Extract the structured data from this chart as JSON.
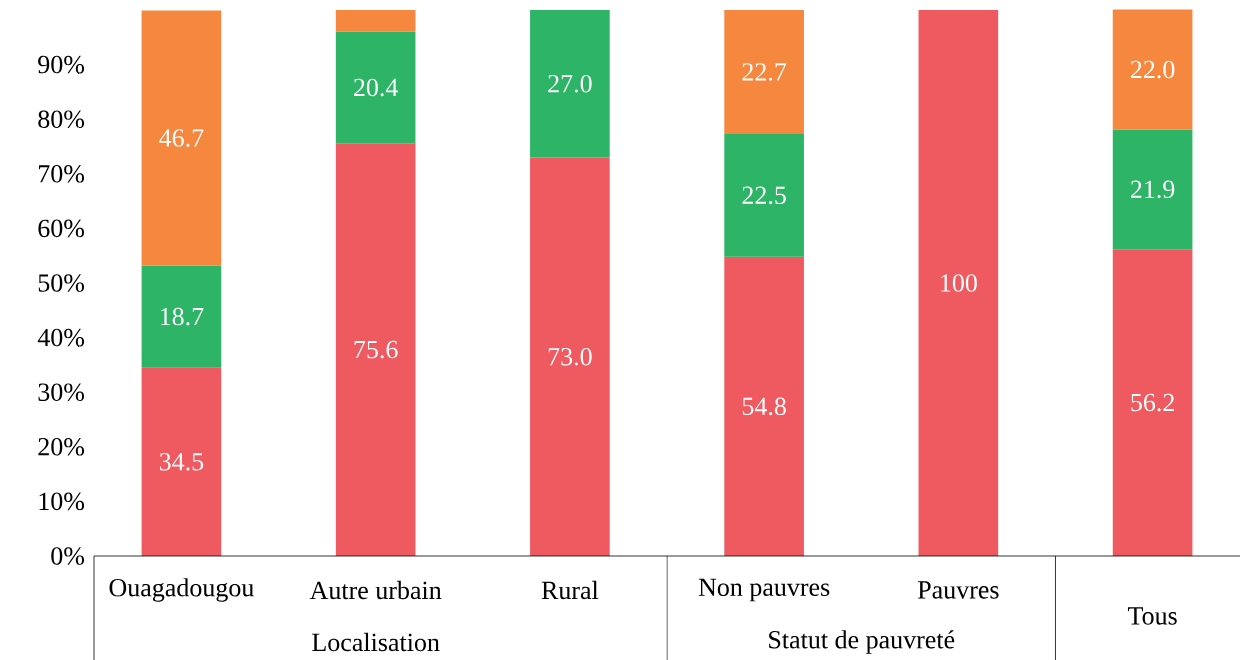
{
  "chart_data": {
    "type": "bar",
    "stacked": true,
    "categories": [
      "Ouagadougou",
      "Autre urbain",
      "Rural",
      "Non pauvres",
      "Pauvres",
      "Tous"
    ],
    "series": [
      {
        "color": "#ef5a60",
        "values": [
          34.5,
          75.6,
          73.0,
          54.8,
          100,
          56.2
        ],
        "value_labels": [
          "34.5",
          "75.6",
          "73.0",
          "54.8",
          "100",
          "56.2"
        ]
      },
      {
        "color": "#2db466",
        "values": [
          18.7,
          20.4,
          27.0,
          22.5,
          null,
          21.9
        ],
        "value_labels": [
          "18.7",
          "20.4",
          "27.0",
          "22.5",
          null,
          "21.9"
        ]
      },
      {
        "color": "#f5873e",
        "values": [
          46.7,
          4.0,
          null,
          22.7,
          null,
          22.0
        ],
        "value_labels": [
          "46.7",
          null,
          null,
          "22.7",
          null,
          "22.0"
        ]
      }
    ],
    "ylim": [
      0,
      100
    ],
    "yticks": [
      {
        "value": 0,
        "label": "0%"
      },
      {
        "value": 10,
        "label": "10%"
      },
      {
        "value": 20,
        "label": "20%"
      },
      {
        "value": 30,
        "label": "30%"
      },
      {
        "value": 40,
        "label": "40%"
      },
      {
        "value": 50,
        "label": "50%"
      },
      {
        "value": 60,
        "label": "60%"
      },
      {
        "value": 70,
        "label": "70%"
      },
      {
        "value": 80,
        "label": "80%"
      },
      {
        "value": 90,
        "label": "90%"
      }
    ],
    "annotations": [
      "Localisation",
      "Statut de pauvreté"
    ]
  }
}
